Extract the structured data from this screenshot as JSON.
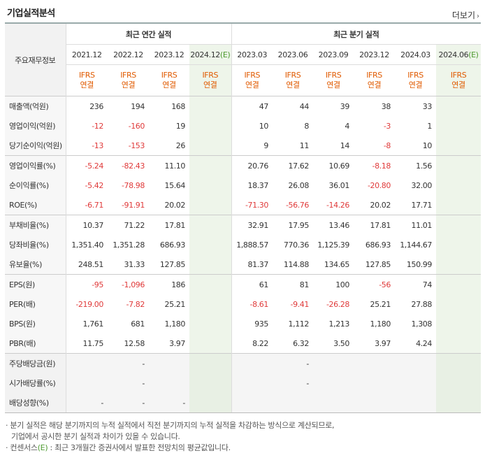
{
  "header": {
    "title": "기업실적분석",
    "more_label": "더보기"
  },
  "table": {
    "label_header": "주요재무정보",
    "annual_header": "최근 연간 실적",
    "quarter_header": "최근 분기 실적",
    "periods": [
      "2021.12",
      "2022.12",
      "2023.12",
      "2024.12",
      "2023.03",
      "2023.06",
      "2023.09",
      "2023.12",
      "2024.03",
      "2024.06"
    ],
    "est_suffix": "(E)",
    "ifrs_top": "IFRS",
    "ifrs_bottom": "연결",
    "rows": [
      {
        "label": "매출액(억원)",
        "values": [
          "236",
          "194",
          "168",
          "",
          "47",
          "44",
          "39",
          "38",
          "33",
          ""
        ]
      },
      {
        "label": "영업이익(억원)",
        "values": [
          "-12",
          "-160",
          "19",
          "",
          "10",
          "8",
          "4",
          "-3",
          "1",
          ""
        ]
      },
      {
        "label": "당기순이익(억원)",
        "values": [
          "-13",
          "-153",
          "26",
          "",
          "9",
          "11",
          "14",
          "-8",
          "10",
          ""
        ]
      },
      {
        "label": "영업이익률(%)",
        "values": [
          "-5.24",
          "-82.43",
          "11.10",
          "",
          "20.76",
          "17.62",
          "10.69",
          "-8.18",
          "1.56",
          ""
        ]
      },
      {
        "label": "순이익률(%)",
        "values": [
          "-5.42",
          "-78.98",
          "15.64",
          "",
          "18.37",
          "26.08",
          "36.01",
          "-20.80",
          "32.00",
          ""
        ]
      },
      {
        "label": "ROE(%)",
        "values": [
          "-6.71",
          "-91.91",
          "20.02",
          "",
          "-71.30",
          "-56.76",
          "-14.26",
          "20.02",
          "17.71",
          ""
        ]
      },
      {
        "label": "부채비율(%)",
        "values": [
          "10.37",
          "71.22",
          "17.81",
          "",
          "32.91",
          "17.95",
          "13.46",
          "17.81",
          "11.01",
          ""
        ]
      },
      {
        "label": "당좌비율(%)",
        "values": [
          "1,351.40",
          "1,351.28",
          "686.93",
          "",
          "1,888.57",
          "770.36",
          "1,125.39",
          "686.93",
          "1,144.67",
          ""
        ]
      },
      {
        "label": "유보율(%)",
        "values": [
          "248.51",
          "31.33",
          "127.85",
          "",
          "81.37",
          "114.88",
          "134.65",
          "127.85",
          "150.99",
          ""
        ]
      },
      {
        "label": "EPS(원)",
        "values": [
          "-95",
          "-1,096",
          "186",
          "",
          "61",
          "81",
          "100",
          "-56",
          "74",
          ""
        ]
      },
      {
        "label": "PER(배)",
        "values": [
          "-219.00",
          "-7.82",
          "25.21",
          "",
          "-8.61",
          "-9.41",
          "-26.28",
          "25.21",
          "27.88",
          ""
        ]
      },
      {
        "label": "BPS(원)",
        "values": [
          "1,761",
          "681",
          "1,180",
          "",
          "935",
          "1,112",
          "1,213",
          "1,180",
          "1,308",
          ""
        ]
      },
      {
        "label": "PBR(배)",
        "values": [
          "11.75",
          "12.58",
          "3.97",
          "",
          "8.22",
          "6.32",
          "3.50",
          "3.97",
          "4.24",
          ""
        ]
      },
      {
        "label": "주당배당금(원)",
        "values": [
          "",
          "-",
          "",
          "",
          "",
          "-",
          "",
          "",
          "",
          ""
        ]
      },
      {
        "label": "시가배당률(%)",
        "values": [
          "",
          "-",
          "",
          "",
          "",
          "-",
          "",
          "",
          "",
          ""
        ]
      },
      {
        "label": "배당성향(%)",
        "values": [
          "-",
          "-",
          "-",
          "",
          "",
          "",
          "",
          "",
          "",
          ""
        ]
      }
    ]
  },
  "footnotes": {
    "note1_line1": "· 분기 실적은 해당 분기까지의 누적 실적에서 직전 분기까지의 누적 실적을 차감하는 방식으로 계산되므로,",
    "note1_line2": "기업에서 공시한 분기 실적과 차이가 있을 수 있습니다.",
    "note2_prefix": "· 컨센서스",
    "note2_e": "(E)",
    "note2_rest": " : 최근 3개월간 증권사에서 발표한 전망치의 평균값입니다."
  },
  "colors": {
    "negative": "#e03a3a",
    "ifrs": "#e05a00",
    "estimate": "#4d9a2f",
    "estimate_bg": "#eef5ea"
  }
}
